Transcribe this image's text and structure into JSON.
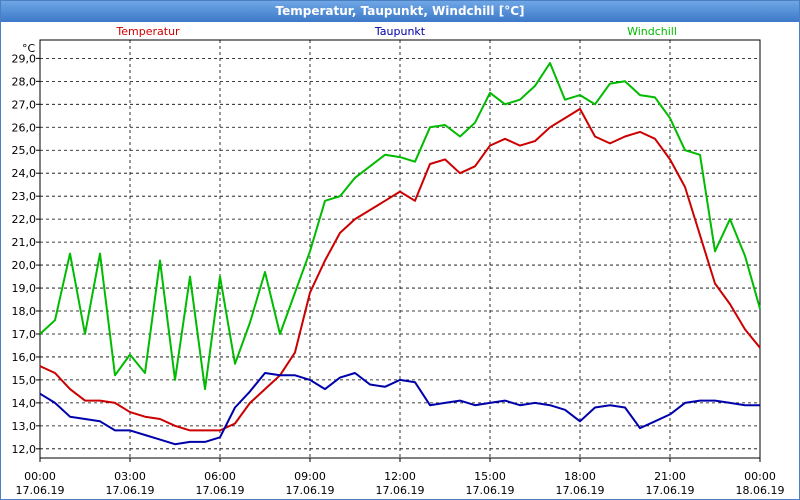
{
  "window": {
    "title": "Temperatur, Taupunkt, Windchill [°C]"
  },
  "chart_data": {
    "type": "line",
    "title": "Temperatur, Taupunkt, Windchill [°C]",
    "ylabel": "°C",
    "ylim": [
      11.6,
      29.8
    ],
    "y_ticks": [
      "12,0",
      "13,0",
      "14,0",
      "15,0",
      "16,0",
      "17,0",
      "18,0",
      "19,0",
      "20,0",
      "21,0",
      "22,0",
      "23,0",
      "24,0",
      "25,0",
      "26,0",
      "27,0",
      "28,0",
      "29,0"
    ],
    "xlim": [
      "2019-06-17 00:00",
      "2019-06-18 00:00"
    ],
    "x_ticks": [
      {
        "time": "00:00",
        "date": "17.06.19"
      },
      {
        "time": "03:00",
        "date": "17.06.19"
      },
      {
        "time": "06:00",
        "date": "17.06.19"
      },
      {
        "time": "09:00",
        "date": "17.06.19"
      },
      {
        "time": "12:00",
        "date": "17.06.19"
      },
      {
        "time": "15:00",
        "date": "17.06.19"
      },
      {
        "time": "18:00",
        "date": "17.06.19"
      },
      {
        "time": "21:00",
        "date": "17.06.19"
      },
      {
        "time": "00:00",
        "date": "18.06.19"
      }
    ],
    "grid": true,
    "legend_position": "top",
    "x": [
      "00:00",
      "00:30",
      "01:00",
      "01:30",
      "02:00",
      "02:30",
      "03:00",
      "03:30",
      "04:00",
      "04:30",
      "05:00",
      "05:30",
      "06:00",
      "06:30",
      "07:00",
      "07:30",
      "08:00",
      "08:30",
      "09:00",
      "09:30",
      "10:00",
      "10:30",
      "11:00",
      "11:30",
      "12:00",
      "12:30",
      "13:00",
      "13:30",
      "14:00",
      "14:30",
      "15:00",
      "15:30",
      "16:00",
      "16:30",
      "17:00",
      "17:30",
      "18:00",
      "18:30",
      "19:00",
      "19:30",
      "20:00",
      "20:30",
      "21:00",
      "21:30",
      "22:00",
      "22:30",
      "23:00",
      "23:30",
      "24:00"
    ],
    "series": [
      {
        "name": "Temperatur",
        "color": "#cc0000",
        "values": [
          15.6,
          15.3,
          14.6,
          14.1,
          14.1,
          14.0,
          13.6,
          13.4,
          13.3,
          13.0,
          12.8,
          12.8,
          12.8,
          13.1,
          14.0,
          14.6,
          15.2,
          16.2,
          18.8,
          20.2,
          21.4,
          22.0,
          22.4,
          22.8,
          23.2,
          22.8,
          24.4,
          24.6,
          24.0,
          24.3,
          25.2,
          25.5,
          25.2,
          25.4,
          26.0,
          26.4,
          26.8,
          25.6,
          25.3,
          25.6,
          25.8,
          25.5,
          24.6,
          23.4,
          21.3,
          19.2,
          18.3,
          17.2,
          16.4
        ]
      },
      {
        "name": "Taupunkt",
        "color": "#0000aa",
        "values": [
          14.4,
          14.0,
          13.4,
          13.3,
          13.2,
          12.8,
          12.8,
          12.6,
          12.4,
          12.2,
          12.3,
          12.3,
          12.5,
          13.8,
          14.5,
          15.3,
          15.2,
          15.2,
          15.0,
          14.6,
          15.1,
          15.3,
          14.8,
          14.7,
          15.0,
          14.9,
          13.9,
          14.0,
          14.1,
          13.9,
          14.0,
          14.1,
          13.9,
          14.0,
          13.9,
          13.7,
          13.2,
          13.8,
          13.9,
          13.8,
          12.9,
          13.2,
          13.5,
          14.0,
          14.1,
          14.1,
          14.0,
          13.9,
          13.9
        ]
      },
      {
        "name": "Windchill",
        "color": "#00bb00",
        "values": [
          17.0,
          17.6,
          20.5,
          17.0,
          20.5,
          15.2,
          16.1,
          15.3,
          20.2,
          15.0,
          19.5,
          14.6,
          19.5,
          15.7,
          17.5,
          19.7,
          17.0,
          18.8,
          20.6,
          22.8,
          23.0,
          23.8,
          24.3,
          24.8,
          24.7,
          24.5,
          26.0,
          26.1,
          25.6,
          26.2,
          27.5,
          27.0,
          27.2,
          27.8,
          28.8,
          27.2,
          27.4,
          27.0,
          27.9,
          28.0,
          27.4,
          27.3,
          26.4,
          25.0,
          24.8,
          20.6,
          22.0,
          20.4,
          18.1
        ]
      }
    ]
  }
}
